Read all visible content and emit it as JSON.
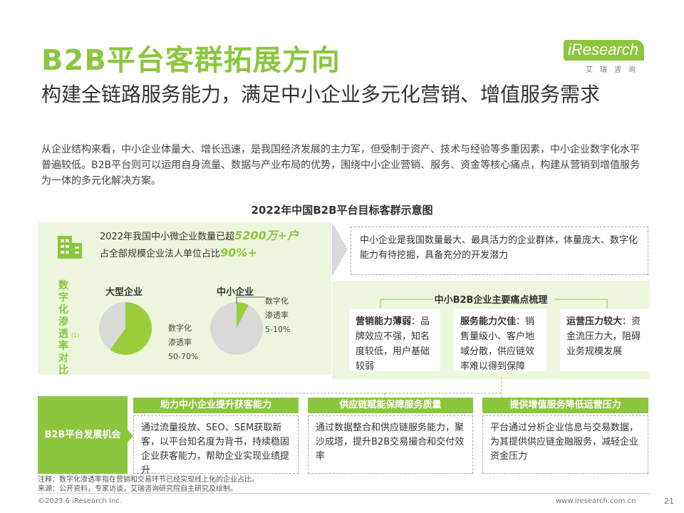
{
  "title": "B2B平台客群拓展方向",
  "logo": {
    "word": "iResearch",
    "cn": "艾瑞咨询"
  },
  "subtitle": "构建全链路服务能力，满足中小企业多元化营销、增值服务需求",
  "intro": "从企业结构来看，中小企业体量大、增长迅速，是我国经济发展的主力军，但受制于资产、技术与经验等多重因素，中小企业数字化水平普遍较低。B2B平台则可以运用自身流量、数据与产业布局的优势，围绕中小企业营销、服务、资金等核心痛点，构建从营销到增值服务为一体的多元化解决方案。",
  "chart_title": "2022年中国B2B平台目标客群示意图",
  "stat": {
    "line1_prefix": "2022年我国中小微企业数量已超",
    "line1_big": "5200万+户",
    "line2_prefix": "占全部规模企业法人单位占比",
    "line2_big": "90%+"
  },
  "vertical_label": [
    "数",
    "字",
    "化",
    "渗",
    "透",
    "率",
    "对",
    "比"
  ],
  "vertical_note": "(1)",
  "chart_data": [
    {
      "type": "pie",
      "title": "大型企业",
      "label_lines": [
        "数字化",
        "渗透率",
        "50-70%"
      ],
      "slices": [
        {
          "label": "数字化渗透率",
          "value": 60,
          "color": "#9acd3c"
        },
        {
          "label": "",
          "value": 40,
          "color": "#d9d9d9"
        }
      ]
    },
    {
      "type": "pie",
      "title": "中小企业",
      "label_lines": [
        "数字化",
        "渗透率",
        "5-10%"
      ],
      "slices": [
        {
          "label": "数字化渗透率",
          "value": 7.5,
          "color": "#9acd3c"
        },
        {
          "label": "",
          "value": 92.5,
          "color": "#d9d9d9"
        }
      ]
    }
  ],
  "desc_box": "中小企业是我国数量最大、最具活力的企业群体，体量庞大、数字化能力有待挖掘，具备充分的开发潜力",
  "pain_title": "中小B2B企业主要痛点梳理",
  "pain_points": [
    {
      "head": "营销能力薄弱",
      "text": "：品牌效应不强，知名度较低，用户基础较弱"
    },
    {
      "head": "服务能力欠佳",
      "text": "：销售量级小、客户地域分散，供应链效率难以得到保障"
    },
    {
      "head": "运营压力较大",
      "text": "：资金流压力大，阻碍业务规模发展"
    }
  ],
  "opportunity_label": "B2B平台发展机会",
  "opportunities": [
    {
      "head": "助力中小企业提升获客能力",
      "body": "通过流量投放、SEO、SEM获取新客，以平台知名度为背书，持续稳固企业获客能力，帮助企业实现业绩提升"
    },
    {
      "head": "供应链赋能保障服务质量",
      "body": "通过数据整合和供应链服务能力，聚沙成塔，提升B2B交易撮合和交付效率"
    },
    {
      "head": "提供增值服务降低运营压力",
      "body": "平台通过分析企业信息与交易数据，为其提供供应链金融服务，减轻企业资金压力"
    }
  ],
  "footnote": "注释：数字化渗透率指在营销和交易环节已经实现线上化的企业占比。\n来源：公开资料，专家访谈，艾瑞咨询研究院自主研究及绘制。",
  "footer_left": "©2023.6 iResearch Inc.",
  "footer_right": "www.iresearch.com.cn",
  "page_number": "21",
  "colors": {
    "accent": "#8cc63f",
    "panel": "#eef6dd",
    "pie_rest": "#d9d9d9"
  }
}
